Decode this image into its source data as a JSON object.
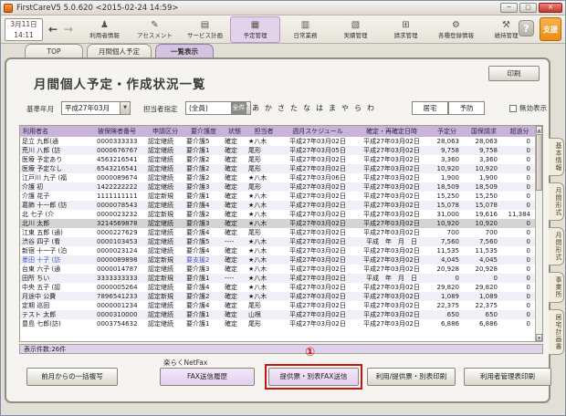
{
  "window": {
    "title": "FirstCareV5 5.0.620 <2015-02-24 14:59>"
  },
  "colors": {
    "header_purple": "#c9b3d9",
    "status_purple": "#ded2ec",
    "highlight_red": "#cc1111",
    "support_orange": "#ec8b14",
    "accent_blue": "#4753c8",
    "selected_gray": "#d4d4d4"
  },
  "toolbar": {
    "date": "3月11日",
    "time": "14:11",
    "help_label": "?",
    "support_label": "支援",
    "items": [
      {
        "label": "利用者情報",
        "icon": "user-icon",
        "active": false
      },
      {
        "label": "アセスメント",
        "icon": "pencil-icon",
        "active": false
      },
      {
        "label": "サービス計画",
        "icon": "document-icon",
        "active": false
      },
      {
        "label": "予定管理",
        "icon": "calendar-icon",
        "active": true
      },
      {
        "label": "日常業務",
        "icon": "briefcase-icon",
        "active": false
      },
      {
        "label": "実績管理",
        "icon": "clipboard-icon",
        "active": false
      },
      {
        "label": "請求管理",
        "icon": "calculator-icon",
        "active": false
      },
      {
        "label": "各種登録情報",
        "icon": "gear-icon",
        "active": false
      },
      {
        "label": "維持管理",
        "icon": "wrench-icon",
        "active": false
      }
    ]
  },
  "tabs": [
    {
      "label": "TOP",
      "active": false
    },
    {
      "label": "月間個人予定",
      "active": false
    },
    {
      "label": "一覧表示",
      "active": true
    }
  ],
  "page": {
    "title": "月間個人予定・作成状況一覧",
    "print_label": "印刷",
    "filters": {
      "base_month_label": "基準年月",
      "base_month_value": "平成27年03月",
      "staff_label": "担当者指定",
      "staff_value": "(全員)",
      "kana_all": "全件",
      "kana": [
        "あ",
        "か",
        "さ",
        "た",
        "な",
        "は",
        "ま",
        "や",
        "ら",
        "わ"
      ],
      "kyotaku_label": "居宅",
      "yobou_label": "予防",
      "invalid_label": "無効表示"
    },
    "table": {
      "columns": [
        "利用者名",
        "被保険者番号",
        "申請区分",
        "要介護度",
        "状態",
        "担当者",
        "週月スケジュール",
        "確定・再確定日時",
        "予定分",
        "国保請求",
        "超過分"
      ],
      "rows": [
        {
          "cells": [
            "足立 九郎(通",
            "0000333333",
            "認定継続",
            "要介護5",
            "確定",
            "★八木",
            "平成27年03月02日",
            "平成27年03月02日",
            "28,063",
            "28,063",
            "0"
          ],
          "selected": false,
          "accent": false
        },
        {
          "cells": [
            "荒川 八郎 (訪",
            "0000676767",
            "認定継続",
            "要介護1",
            "確定",
            "尾形",
            "平成27年03月05日",
            "平成27年03月02日",
            "9,758",
            "9,758",
            "0"
          ],
          "selected": false,
          "accent": false
        },
        {
          "cells": [
            "医療 予定あり",
            "4563216541",
            "認定継続",
            "要介護2",
            "確定",
            "尾形",
            "平成27年03月02日",
            "平成27年03月02日",
            "3,360",
            "3,360",
            "0"
          ],
          "selected": false,
          "accent": false
        },
        {
          "cells": [
            "医療 予定なし",
            "6543216541",
            "認定継続",
            "要介護2",
            "確定",
            "尾形",
            "平成27年03月02日",
            "平成27年03月02日",
            "10,920",
            "10,920",
            "0"
          ],
          "selected": false,
          "accent": false
        },
        {
          "cells": [
            "江戸川 九子 (福",
            "0000089674",
            "認定継続",
            "要介護2",
            "確定",
            "★八木",
            "平成27年03月06日",
            "平成27年03月02日",
            "1,900",
            "1,900",
            "0"
          ],
          "selected": false,
          "accent": false
        },
        {
          "cells": [
            "介護 初",
            "1422222222",
            "認定継続",
            "要介護3",
            "確定",
            "尾形",
            "平成27年03月02日",
            "平成27年03月02日",
            "18,509",
            "18,509",
            "0"
          ],
          "selected": false,
          "accent": false
        },
        {
          "cells": [
            "介護 花子",
            "1111111111",
            "認定新規",
            "要介護1",
            "確定",
            "★八木",
            "平成27年03月02日",
            "平成27年03月02日",
            "15,250",
            "15,250",
            "0"
          ],
          "selected": false,
          "accent": false
        },
        {
          "cells": [
            "葛飾 十一郎 (訪",
            "0000078543",
            "認定継続",
            "要介護4",
            "確定",
            "★八木",
            "平成27年03月02日",
            "平成27年03月02日",
            "15,078",
            "15,078",
            "0"
          ],
          "selected": false,
          "accent": false
        },
        {
          "cells": [
            "北 七子 (介",
            "0000023232",
            "認定新規",
            "要介護2",
            "確定",
            "★八木",
            "平成27年03月02日",
            "平成27年03月02日",
            "31,000",
            "19,616",
            "11,384"
          ],
          "selected": false,
          "accent": false
        },
        {
          "cells": [
            "北川 太郎",
            "3214569878",
            "認定継続",
            "要介護3",
            "確定",
            "★八木",
            "平成27年03月02日",
            "平成27年03月02日",
            "10,920",
            "10,920",
            "0"
          ],
          "selected": true,
          "accent": false
        },
        {
          "cells": [
            "江東 五郎 (通)",
            "0000227629",
            "認定継続",
            "要介護4",
            "確定",
            "尾形",
            "平成27年03月02日",
            "平成27年03月02日",
            "700",
            "700",
            "0"
          ],
          "selected": false,
          "accent": false
        },
        {
          "cells": [
            "渋谷 四子 (看",
            "0000103453",
            "認定継続",
            "要介護5",
            "----",
            "★八木",
            "平成27年03月02日",
            "平成　年　月　日",
            "7,560",
            "7,560",
            "0"
          ],
          "selected": false,
          "accent": false
        },
        {
          "cells": [
            "新宿 十一子 (泊",
            "0000023124",
            "認定継続",
            "要介護4",
            "確定",
            "★八木",
            "平成27年03月02日",
            "平成27年03月02日",
            "11,535",
            "11,535",
            "0"
          ],
          "selected": false,
          "accent": false
        },
        {
          "cells": [
            "墨田 十子 (訪",
            "0000089898",
            "認定新規",
            "要支援2",
            "確定",
            "★八木",
            "平成27年03月02日",
            "平成27年03月02日",
            "4,045",
            "4,045",
            "0"
          ],
          "selected": false,
          "accent": true
        },
        {
          "cells": [
            "台東 六子 (通",
            "0000014787",
            "認定継続",
            "要介護3",
            "確定",
            "★八木",
            "平成27年03月02日",
            "平成27年03月02日",
            "20,928",
            "20,928",
            "0"
          ],
          "selected": false,
          "accent": false
        },
        {
          "cells": [
            "田所 ちい",
            "3333333333",
            "認定新規",
            "要介護1",
            "----",
            "★八木",
            "平成27年03月02日",
            "平成　年　月　日",
            "0",
            "0",
            "0"
          ],
          "selected": false,
          "accent": false
        },
        {
          "cells": [
            "中央 五子 (認",
            "0000005264",
            "認定継続",
            "要介護4",
            "確定",
            "★八木",
            "平成27年03月02日",
            "平成27年03月02日",
            "29,820",
            "29,820",
            "0"
          ],
          "selected": false,
          "accent": false
        },
        {
          "cells": [
            "月途中 公費",
            "7896541233",
            "認定新規",
            "要介護2",
            "確定",
            "★八木",
            "平成27年03月02日",
            "平成27年03月02日",
            "1,089",
            "1,089",
            "0"
          ],
          "selected": false,
          "accent": false
        },
        {
          "cells": [
            "定期 巡回",
            "0000001234",
            "認定継続",
            "要介護4",
            "確定",
            "尾形",
            "平成27年03月02日",
            "平成27年03月02日",
            "22,375",
            "22,375",
            "0"
          ],
          "selected": false,
          "accent": false
        },
        {
          "cells": [
            "テスト 太郎",
            "0000310000",
            "認定継続",
            "要介護1",
            "確定",
            "山根",
            "平成27年03月02日",
            "平成27年03月02日",
            "650",
            "650",
            "0"
          ],
          "selected": false,
          "accent": false
        },
        {
          "cells": [
            "豊島 七郎(訪)",
            "0003754632",
            "認定継続",
            "要介護1",
            "確定",
            "尾形",
            "平成27年03月02日",
            "平成27年03月02日",
            "6,886",
            "6,886",
            "0"
          ],
          "selected": false,
          "accent": false
        }
      ]
    },
    "status": "表示件数:26件",
    "netfax_label": "楽らくNetFax",
    "annotation": "①",
    "buttons": [
      {
        "label": "前月からの一括複写",
        "style": "gray",
        "highlighted": false
      },
      {
        "label": "FAX送信履歴",
        "style": "purple",
        "highlighted": false
      },
      {
        "label": "提供票・別表FAX送信",
        "style": "purple",
        "highlighted": true
      },
      {
        "label": "利用/提供票・別表印刷",
        "style": "gray",
        "highlighted": false
      },
      {
        "label": "利用者管理表印刷",
        "style": "gray",
        "highlighted": false
      }
    ]
  },
  "side_tabs": [
    "基本情報",
    "月間形式",
    "月間形式",
    "事業所",
    "居宅計画書"
  ]
}
